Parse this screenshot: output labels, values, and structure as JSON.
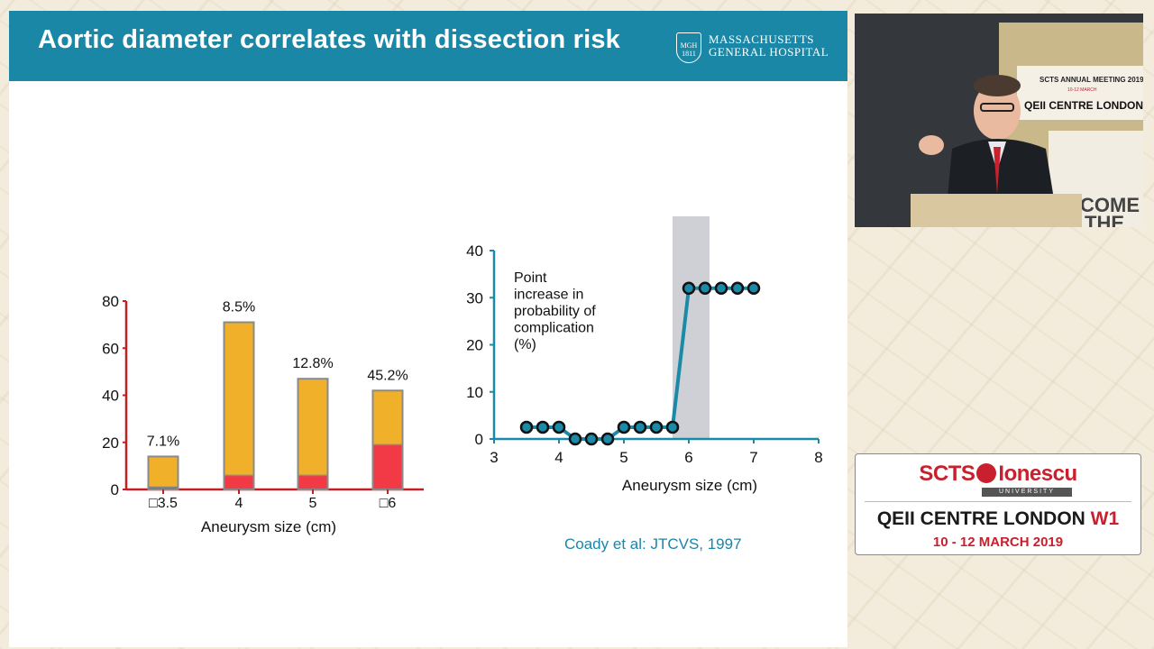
{
  "slide": {
    "title": "Aortic diameter correlates with dissection risk",
    "logo": {
      "shield_text": "MGH 1811",
      "line1": "MASSACHUSETTS",
      "line2": "GENERAL HOSPITAL"
    },
    "citation": "Coady et al:  JTCVS, 1997"
  },
  "chart_data": [
    {
      "type": "bar",
      "stacked": true,
      "categories": [
        "□3.5",
        "4",
        "5",
        "□6"
      ],
      "series": [
        {
          "values": [
            14,
            71,
            47,
            42
          ],
          "color": "#f0b02a"
        },
        {
          "values": [
            1,
            6,
            6,
            19
          ],
          "color": "#f23a46"
        }
      ],
      "data_labels": [
        "7.1%",
        "8.5%",
        "12.8%",
        "45.2%"
      ],
      "yticks": [
        0,
        20,
        40,
        60,
        80
      ],
      "ylim": [
        0,
        80
      ],
      "xlabel": "Aneurysm size (cm)",
      "axis_color": "#c41e24"
    },
    {
      "type": "line",
      "x": [
        3.5,
        3.75,
        4.0,
        4.25,
        4.5,
        4.75,
        5.0,
        5.25,
        5.5,
        5.75,
        6.0,
        6.25,
        6.5,
        6.75,
        7.0
      ],
      "y": [
        2.5,
        2.5,
        2.5,
        0,
        0,
        0,
        2.5,
        2.5,
        2.5,
        2.5,
        32,
        32,
        32,
        32,
        32
      ],
      "xticks": [
        3,
        4,
        5,
        6,
        7,
        8
      ],
      "yticks": [
        0,
        10,
        20,
        30,
        40
      ],
      "xlim": [
        3,
        8
      ],
      "ylim": [
        0,
        40
      ],
      "xlabel": "Aneurysm size (cm)",
      "annotation": [
        "Point",
        "increase in",
        "probability of",
        "complication",
        "(%)"
      ],
      "highlight_band": [
        5.75,
        6.32
      ],
      "line_color": "#1a8aa8",
      "marker_fill": "#1a8aa8",
      "marker_edge": "#111111",
      "axis_color": "#1a8aa8"
    }
  ],
  "video": {
    "sign_title": "SCTS ANNUAL MEETING 2019",
    "sign_sub": "10-12 MARCH",
    "sign_venue": "QEII CENTRE LONDON W1",
    "welcome": "COME",
    "welcome2": "THE"
  },
  "banner": {
    "brand_left": "SCTS",
    "brand_right": "Ionescu",
    "university": "UNIVERSITY",
    "venue": "QEII CENTRE LONDON",
    "venue_w1": "W1",
    "dates": "10 - 12 MARCH 2019"
  }
}
